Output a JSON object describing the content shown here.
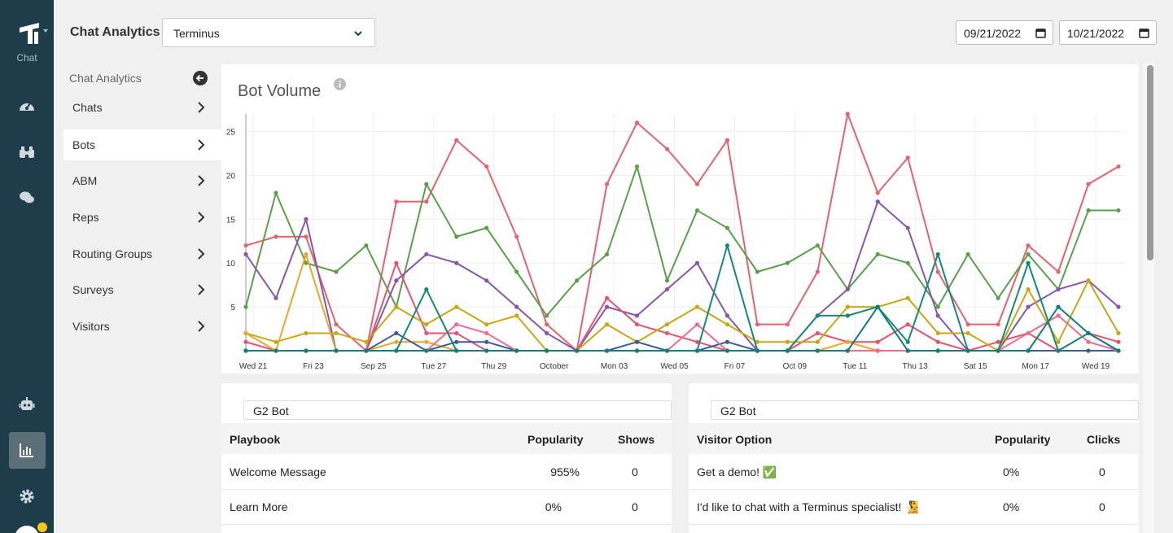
{
  "rail": {
    "logo_label": "Chat"
  },
  "header": {
    "title": "Chat Analytics",
    "account_select": "Terminus",
    "date_from": "09/21/2022",
    "date_to": "10/21/2022"
  },
  "subnav": {
    "heading": "Chat Analytics",
    "items": [
      {
        "label": "Chats"
      },
      {
        "label": "Bots"
      },
      {
        "label": "ABM"
      },
      {
        "label": "Reps"
      },
      {
        "label": "Routing Groups"
      },
      {
        "label": "Surveys"
      },
      {
        "label": "Visitors"
      }
    ],
    "active": "Bots"
  },
  "chart": {
    "title": "Bot Volume"
  },
  "chart_data": {
    "type": "line",
    "title": "Bot Volume",
    "x_tick_labels": [
      "Wed 21",
      "Fri 23",
      "Sep 25",
      "Tue 27",
      "Thu 29",
      "October",
      "Mon 03",
      "Wed 05",
      "Fri 07",
      "Oct 09",
      "Tue 11",
      "Thu 13",
      "Sat 15",
      "Mon 17",
      "Wed 19"
    ],
    "y_ticks": [
      5,
      10,
      15,
      20,
      25
    ],
    "ylim": [
      0,
      27
    ],
    "x": [
      "2022-09-21",
      "2022-09-22",
      "2022-09-23",
      "2022-09-24",
      "2022-09-25",
      "2022-09-26",
      "2022-09-27",
      "2022-09-28",
      "2022-09-29",
      "2022-09-30",
      "2022-10-01",
      "2022-10-02",
      "2022-10-03",
      "2022-10-04",
      "2022-10-05",
      "2022-10-06",
      "2022-10-07",
      "2022-10-08",
      "2022-10-09",
      "2022-10-10",
      "2022-10-11",
      "2022-10-12",
      "2022-10-13",
      "2022-10-14",
      "2022-10-15",
      "2022-10-16",
      "2022-10-17",
      "2022-10-18",
      "2022-10-19",
      "2022-10-20"
    ],
    "series": [
      {
        "color": "#e8626e",
        "values": [
          12,
          13,
          13,
          3,
          0,
          17,
          17,
          24,
          21,
          13,
          3,
          0,
          19,
          26,
          23,
          19,
          24,
          3,
          3,
          9,
          27,
          18,
          22,
          9,
          3,
          3,
          12,
          9,
          19,
          21
        ]
      },
      {
        "color": "#5aa04b",
        "values": [
          5,
          18,
          10,
          9,
          12,
          5,
          19,
          13,
          14,
          9,
          4,
          8,
          11,
          21,
          8,
          16,
          14,
          9,
          10,
          12,
          7,
          11,
          10,
          5,
          11,
          6,
          11,
          7,
          16,
          16
        ]
      },
      {
        "color": "#8757a8",
        "values": [
          11,
          6,
          15,
          0,
          0,
          8,
          11,
          10,
          8,
          5,
          2,
          0,
          5,
          4,
          7,
          10,
          4,
          0,
          0,
          4,
          7,
          17,
          14,
          4,
          0,
          0,
          5,
          7,
          8,
          5
        ]
      },
      {
        "color": "#e8526e",
        "values": [
          1,
          0,
          0,
          0,
          0,
          10,
          2,
          2,
          0,
          0,
          0,
          0,
          6,
          3,
          2,
          1,
          0,
          0,
          0,
          2,
          1,
          1,
          3,
          1,
          0,
          1,
          2,
          0,
          2,
          1
        ]
      },
      {
        "color": "#c6a812",
        "values": [
          2,
          1,
          2,
          2,
          1,
          5,
          3,
          5,
          3,
          4,
          0,
          0,
          3,
          1,
          3,
          5,
          3,
          1,
          1,
          1,
          5,
          5,
          6,
          2,
          2,
          0,
          7,
          1,
          8,
          2
        ]
      },
      {
        "color": "#f0a526",
        "values": [
          2,
          0,
          11,
          0,
          0,
          1,
          1,
          0,
          0,
          0,
          0,
          0,
          0,
          0,
          0,
          0,
          0,
          0,
          0,
          0,
          1,
          0,
          0,
          0,
          0,
          0,
          0,
          0,
          0,
          0
        ]
      },
      {
        "color": "#3d5c99",
        "values": [
          0,
          0,
          0,
          0,
          0,
          2,
          0,
          1,
          1,
          0,
          0,
          0,
          0,
          1,
          0,
          0,
          1,
          0,
          0,
          0,
          0,
          0,
          0,
          0,
          0,
          0,
          0,
          0,
          0,
          0
        ]
      },
      {
        "color": "#f26a8d",
        "values": [
          0,
          0,
          0,
          0,
          0,
          0,
          0,
          3,
          2,
          0,
          0,
          0,
          0,
          0,
          0,
          3,
          0,
          0,
          0,
          0,
          0,
          0,
          0,
          0,
          0,
          0,
          2,
          4,
          1,
          0
        ]
      },
      {
        "color": "#128a7a",
        "values": [
          0,
          0,
          0,
          0,
          0,
          0,
          7,
          0,
          0,
          0,
          0,
          0,
          0,
          0,
          0,
          0,
          12,
          0,
          0,
          4,
          4,
          5,
          1,
          11,
          0,
          0,
          10,
          0,
          2,
          0
        ]
      },
      {
        "color": "#0e7f7f",
        "values": [
          0,
          0,
          0,
          0,
          0,
          0,
          0,
          0,
          0,
          0,
          0,
          0,
          0,
          0,
          0,
          0,
          0,
          0,
          0,
          0,
          0,
          5,
          0,
          0,
          0,
          0,
          0,
          5,
          2,
          0
        ]
      }
    ]
  },
  "playbook_table": {
    "select": "G2 Bot",
    "headers": {
      "playbook": "Playbook",
      "popularity": "Popularity",
      "shows": "Shows"
    },
    "rows": [
      {
        "playbook": "Welcome Message",
        "popularity": "955%",
        "shows": "0"
      },
      {
        "playbook": "Learn More",
        "popularity": "0%",
        "shows": "0"
      }
    ]
  },
  "option_table": {
    "select": "G2 Bot",
    "headers": {
      "option": "Visitor Option",
      "popularity": "Popularity",
      "clicks": "Clicks"
    },
    "rows": [
      {
        "option": "Get a demo! ✅",
        "popularity": "0%",
        "clicks": "0"
      },
      {
        "option": "I'd like to chat with a Terminus specialist! 🧏",
        "popularity": "0%",
        "clicks": "0"
      }
    ]
  },
  "colors": {
    "rail_bg": "#1d3c4c",
    "chart_red": "#e8626e",
    "chart_green": "#5aa04b"
  }
}
